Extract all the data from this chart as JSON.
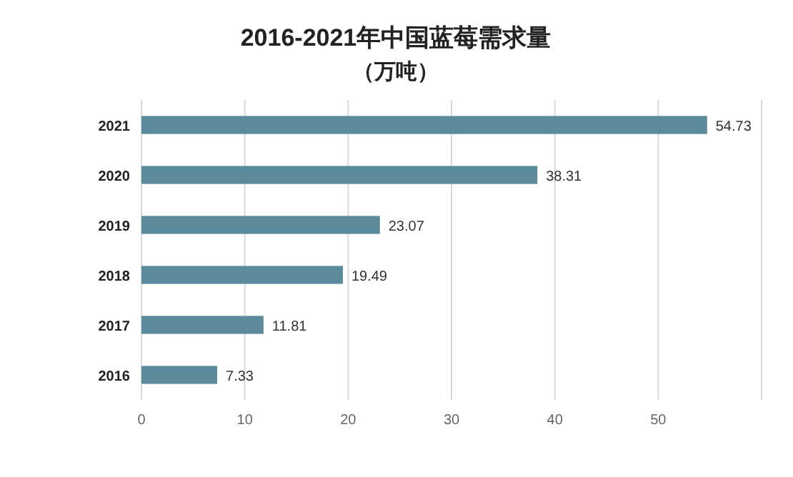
{
  "chart_data": {
    "type": "bar",
    "orientation": "horizontal",
    "title": "2016-2021年中国蓝莓需求量",
    "subtitle": "（万吨）",
    "categories": [
      "2021",
      "2020",
      "2019",
      "2018",
      "2017",
      "2016"
    ],
    "values": [
      54.73,
      38.31,
      23.07,
      19.49,
      11.81,
      7.33
    ],
    "color": "#5b8a9c",
    "data_labels": true,
    "grid": "x",
    "xlim": [
      0,
      60
    ],
    "xticks": [
      0,
      10,
      20,
      30,
      40,
      50,
      {
        "value": 60,
        "label": null
      }
    ]
  }
}
